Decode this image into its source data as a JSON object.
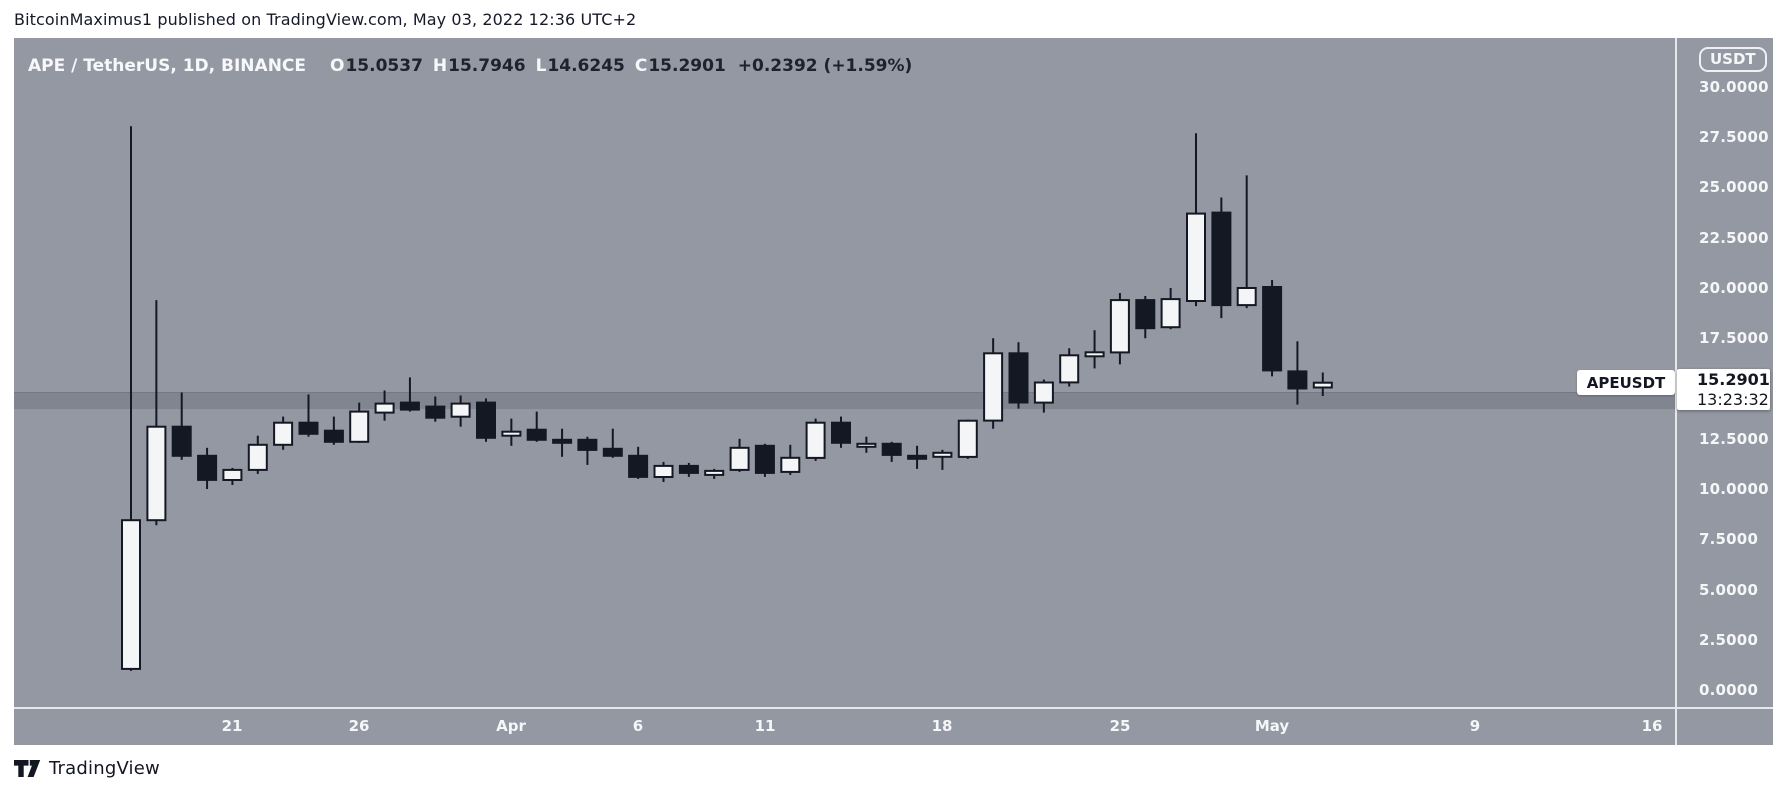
{
  "header": {
    "attribution": "BitcoinMaximus1 published on TradingView.com, May 03, 2022 12:36 UTC+2"
  },
  "legend": {
    "symbol": "APE / TetherUS, 1D, BINANCE",
    "o_label": "O",
    "o_value": "15.0537",
    "h_label": "H",
    "h_value": "15.7946",
    "l_label": "L",
    "l_value": "14.6245",
    "c_label": "C",
    "c_value": "15.2901",
    "change": "+0.2392 (+1.59%)"
  },
  "price_axis": {
    "currency_badge": "USDT",
    "ticks": [
      "30.0000",
      "27.5000",
      "25.0000",
      "22.5000",
      "20.0000",
      "17.5000",
      "12.5000",
      "10.0000",
      "7.5000",
      "5.0000",
      "2.5000",
      "0.0000"
    ],
    "last_price": "15.2901",
    "countdown": "13:23:32",
    "symbol_tag": "APEUSDT"
  },
  "time_axis": {
    "ticks": [
      {
        "label": "21",
        "day_index": 4
      },
      {
        "label": "26",
        "day_index": 9
      },
      {
        "label": "Apr",
        "day_index": 15
      },
      {
        "label": "6",
        "day_index": 20
      },
      {
        "label": "11",
        "day_index": 25
      },
      {
        "label": "18",
        "day_index": 32
      },
      {
        "label": "25",
        "day_index": 39
      },
      {
        "label": "May",
        "day_index": 45
      },
      {
        "label": "9",
        "day_index": 53
      },
      {
        "label": "16",
        "day_index": 60
      }
    ]
  },
  "footer": {
    "brand": "TradingView"
  },
  "colors": {
    "chart_bg": "#9498a2",
    "candle_up_fill": "#f4f5f7",
    "candle_down_fill": "#141823",
    "candle_border": "#141823",
    "axis_text": "#f5f6f8",
    "label_text": "#131722"
  },
  "chart_data": {
    "type": "candlestick",
    "symbol": "APEUSDT",
    "exchange": "BINANCE",
    "interval": "1D",
    "title": "APE / TetherUS, 1D, BINANCE",
    "ylim": [
      0,
      30
    ],
    "grid": false,
    "zone": {
      "top_price": 14.85,
      "bottom_price": 13.95
    },
    "last_price": 15.2901,
    "candles": [
      [
        "2022-03-17",
        1.05,
        28.05,
        0.95,
        8.45
      ],
      [
        "2022-03-18",
        8.45,
        19.4,
        8.2,
        13.1
      ],
      [
        "2022-03-19",
        13.1,
        14.8,
        11.45,
        11.65
      ],
      [
        "2022-03-20",
        11.65,
        12.05,
        10.0,
        10.45
      ],
      [
        "2022-03-21",
        10.45,
        11.05,
        10.2,
        10.95
      ],
      [
        "2022-03-22",
        10.95,
        12.65,
        10.75,
        12.2
      ],
      [
        "2022-03-23",
        12.2,
        13.6,
        11.95,
        13.3
      ],
      [
        "2022-03-24",
        13.3,
        14.7,
        12.6,
        12.75
      ],
      [
        "2022-03-25",
        12.9,
        13.6,
        12.2,
        12.35
      ],
      [
        "2022-03-26",
        12.35,
        14.3,
        12.3,
        13.85
      ],
      [
        "2022-03-27",
        13.8,
        14.9,
        13.4,
        14.25
      ],
      [
        "2022-03-28",
        14.3,
        15.55,
        13.85,
        13.95
      ],
      [
        "2022-03-29",
        14.1,
        14.6,
        13.35,
        13.55
      ],
      [
        "2022-03-30",
        13.6,
        14.65,
        13.1,
        14.25
      ],
      [
        "2022-03-31",
        14.3,
        14.5,
        12.35,
        12.55
      ],
      [
        "2022-04-01",
        12.65,
        13.5,
        12.15,
        12.85
      ],
      [
        "2022-04-02",
        12.95,
        13.85,
        12.35,
        12.45
      ],
      [
        "2022-04-03",
        12.45,
        13.0,
        11.6,
        12.4
      ],
      [
        "2022-04-04",
        12.45,
        12.6,
        11.2,
        11.95
      ],
      [
        "2022-04-05",
        12.0,
        13.0,
        11.55,
        11.65
      ],
      [
        "2022-04-06",
        11.65,
        12.1,
        10.5,
        10.6
      ],
      [
        "2022-04-07",
        10.6,
        11.35,
        10.35,
        11.15
      ],
      [
        "2022-04-08",
        11.15,
        11.3,
        10.6,
        10.8
      ],
      [
        "2022-04-09",
        10.7,
        11.0,
        10.5,
        10.9
      ],
      [
        "2022-04-10",
        10.95,
        12.5,
        10.85,
        12.05
      ],
      [
        "2022-04-11",
        12.15,
        12.25,
        10.6,
        10.8
      ],
      [
        "2022-04-12",
        10.85,
        12.2,
        10.7,
        11.55
      ],
      [
        "2022-04-13",
        11.55,
        13.5,
        11.4,
        13.3
      ],
      [
        "2022-04-14",
        13.3,
        13.6,
        12.05,
        12.3
      ],
      [
        "2022-04-15",
        12.25,
        12.6,
        11.8,
        12.25
      ],
      [
        "2022-04-16",
        12.25,
        12.35,
        11.35,
        11.7
      ],
      [
        "2022-04-17",
        11.65,
        12.15,
        11.0,
        11.6
      ],
      [
        "2022-04-18",
        11.6,
        11.95,
        10.95,
        11.8
      ],
      [
        "2022-04-19",
        11.6,
        13.45,
        11.5,
        13.4
      ],
      [
        "2022-04-20",
        13.4,
        17.5,
        13.0,
        16.75
      ],
      [
        "2022-04-21",
        16.75,
        17.3,
        14.0,
        14.3
      ],
      [
        "2022-04-22",
        14.3,
        15.45,
        13.8,
        15.3
      ],
      [
        "2022-04-23",
        15.3,
        17.0,
        15.1,
        16.65
      ],
      [
        "2022-04-24",
        16.6,
        17.9,
        16.0,
        16.8
      ],
      [
        "2022-04-25",
        16.8,
        19.75,
        16.2,
        19.4
      ],
      [
        "2022-04-26",
        19.4,
        19.6,
        17.5,
        18.0
      ],
      [
        "2022-04-27",
        18.05,
        20.0,
        17.95,
        19.45
      ],
      [
        "2022-04-28",
        19.35,
        27.7,
        19.1,
        23.7
      ],
      [
        "2022-04-29",
        23.75,
        24.5,
        18.5,
        19.15
      ],
      [
        "2022-04-30",
        19.15,
        25.6,
        19.0,
        20.0
      ],
      [
        "2022-05-01",
        20.05,
        20.4,
        15.6,
        15.9
      ],
      [
        "2022-05-02",
        15.85,
        17.35,
        14.2,
        15.0
      ],
      [
        "2022-05-03",
        15.0537,
        15.7946,
        14.6245,
        15.2901
      ]
    ]
  }
}
